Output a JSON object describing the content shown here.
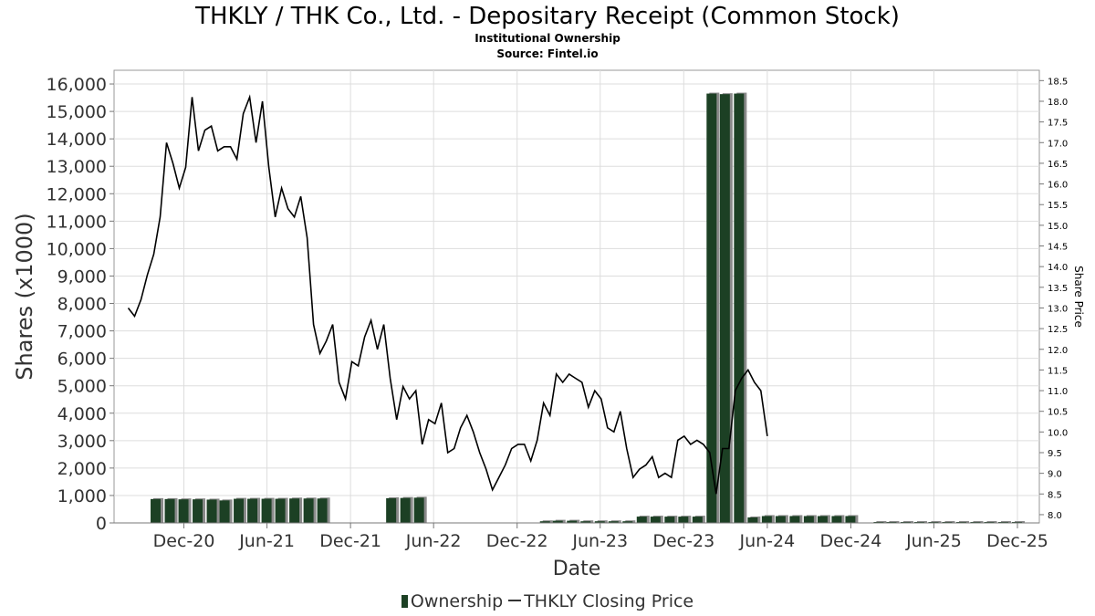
{
  "header": {
    "title": "THKLY / THK Co., Ltd. - Depositary Receipt (Common Stock)",
    "subtitle": "Institutional Ownership",
    "source": "Source: Fintel.io"
  },
  "legend": {
    "ownership_label": "Ownership",
    "price_label": "THKLY Closing Price"
  },
  "colors": {
    "bar": "#1c4024",
    "bar_shadow": "#8a8a8a",
    "line": "#000000",
    "grid": "#dddddd",
    "axis_text": "#333333"
  },
  "chart_data": {
    "type": "bar",
    "title": "THKLY / THK Co., Ltd. - Depositary Receipt (Common Stock)",
    "subtitle": "Institutional Ownership",
    "xlabel": "Date",
    "ylabel": "Shares (x1000)",
    "y2label": "Share Price",
    "ylim": [
      0,
      16500
    ],
    "y2lim": [
      7.8,
      18.75
    ],
    "grid": true,
    "legend_position": "bottom",
    "x_ticks": [
      "Dec-20",
      "Jun-21",
      "Dec-21",
      "Jun-22",
      "Dec-22",
      "Jun-23",
      "Dec-23",
      "Jun-24",
      "Dec-24",
      "Jun-25",
      "Dec-25"
    ],
    "y_ticks": [
      0,
      1000,
      2000,
      3000,
      4000,
      5000,
      6000,
      7000,
      8000,
      9000,
      10000,
      11000,
      12000,
      13000,
      14000,
      15000,
      16000
    ],
    "y2_ticks": [
      8.0,
      8.5,
      9.0,
      9.5,
      10.0,
      10.5,
      11.0,
      11.5,
      12.0,
      12.5,
      13.0,
      13.5,
      14.0,
      14.5,
      15.0,
      15.5,
      16.0,
      16.5,
      17.0,
      17.5,
      18.0,
      18.5
    ],
    "series": [
      {
        "name": "Ownership",
        "kind": "bar",
        "axis": "left",
        "dates": [
          "2020-09-30",
          "2020-10-31",
          "2020-11-30",
          "2020-12-31",
          "2021-01-31",
          "2021-02-28",
          "2021-03-31",
          "2021-04-30",
          "2021-05-31",
          "2021-06-30",
          "2021-07-31",
          "2021-08-31",
          "2021-09-30",
          "2022-02-28",
          "2022-03-31",
          "2022-04-30",
          "2023-01-31",
          "2023-02-28",
          "2023-03-31",
          "2023-04-30",
          "2023-05-31",
          "2023-06-30",
          "2023-07-31",
          "2023-08-31",
          "2023-09-30",
          "2023-10-31",
          "2023-11-30",
          "2023-12-31",
          "2024-01-31",
          "2024-02-29",
          "2024-03-31",
          "2024-04-30",
          "2024-05-31",
          "2024-06-30",
          "2024-07-31",
          "2024-08-31",
          "2024-09-30",
          "2024-10-31",
          "2024-11-30",
          "2025-01-31",
          "2025-02-28",
          "2025-03-31",
          "2025-04-30",
          "2025-05-31",
          "2025-06-30",
          "2025-07-31",
          "2025-08-31",
          "2025-09-30",
          "2025-10-31",
          "2025-11-30"
        ],
        "values": [
          870,
          870,
          860,
          860,
          850,
          820,
          880,
          880,
          880,
          880,
          890,
          890,
          890,
          900,
          910,
          920,
          60,
          80,
          80,
          60,
          60,
          60,
          60,
          230,
          230,
          230,
          230,
          230,
          15650,
          15630,
          15650,
          200,
          250,
          250,
          250,
          250,
          250,
          250,
          250,
          10,
          10,
          10,
          10,
          10,
          10,
          10,
          10,
          10,
          10,
          10
        ]
      },
      {
        "name": "THKLY Closing Price",
        "kind": "line",
        "axis": "right",
        "dates": [
          "2020-08-01",
          "2020-08-15",
          "2020-08-29",
          "2020-09-12",
          "2020-09-26",
          "2020-10-10",
          "2020-10-24",
          "2020-11-07",
          "2020-11-21",
          "2020-12-05",
          "2020-12-19",
          "2021-01-02",
          "2021-01-16",
          "2021-01-30",
          "2021-02-13",
          "2021-02-27",
          "2021-03-13",
          "2021-03-27",
          "2021-04-10",
          "2021-04-24",
          "2021-05-08",
          "2021-05-22",
          "2021-06-05",
          "2021-06-19",
          "2021-07-03",
          "2021-07-17",
          "2021-07-31",
          "2021-08-14",
          "2021-08-28",
          "2021-09-11",
          "2021-09-25",
          "2021-10-09",
          "2021-10-23",
          "2021-11-06",
          "2021-11-20",
          "2021-12-04",
          "2021-12-18",
          "2022-01-01",
          "2022-01-15",
          "2022-01-29",
          "2022-02-12",
          "2022-02-26",
          "2022-03-12",
          "2022-03-26",
          "2022-04-09",
          "2022-04-23",
          "2022-05-07",
          "2022-05-21",
          "2022-06-04",
          "2022-06-18",
          "2022-07-02",
          "2022-07-16",
          "2022-07-30",
          "2022-08-13",
          "2022-08-27",
          "2022-09-10",
          "2022-09-24",
          "2022-10-08",
          "2022-10-22",
          "2022-11-05",
          "2022-11-19",
          "2022-12-03",
          "2022-12-17",
          "2022-12-31",
          "2023-01-14",
          "2023-01-28",
          "2023-02-11",
          "2023-02-25",
          "2023-03-11",
          "2023-03-25",
          "2023-04-08",
          "2023-04-22",
          "2023-05-06",
          "2023-05-20",
          "2023-06-03",
          "2023-06-17",
          "2023-07-01",
          "2023-07-15",
          "2023-07-29",
          "2023-08-12",
          "2023-08-26",
          "2023-09-09",
          "2023-09-23",
          "2023-10-07",
          "2023-10-21",
          "2023-11-04",
          "2023-11-18",
          "2023-12-02",
          "2023-12-16",
          "2023-12-30",
          "2024-01-13",
          "2024-01-27",
          "2024-02-10",
          "2024-02-24",
          "2024-03-09",
          "2024-03-23",
          "2024-04-06",
          "2024-04-20",
          "2024-05-04",
          "2024-05-18",
          "2024-06-01"
        ],
        "values": [
          13.0,
          12.8,
          13.2,
          13.8,
          14.3,
          15.2,
          17.0,
          16.5,
          15.9,
          16.4,
          18.1,
          16.8,
          17.3,
          17.4,
          16.8,
          16.9,
          16.9,
          16.6,
          17.7,
          18.1,
          17.0,
          18.0,
          16.4,
          15.2,
          15.9,
          15.4,
          15.2,
          15.7,
          14.7,
          12.6,
          11.9,
          12.2,
          12.6,
          11.2,
          10.8,
          11.7,
          11.6,
          12.3,
          12.7,
          12.0,
          12.6,
          11.3,
          10.3,
          11.1,
          10.8,
          11.0,
          9.7,
          10.3,
          10.2,
          10.7,
          9.5,
          9.6,
          10.1,
          10.4,
          10.0,
          9.5,
          9.1,
          8.6,
          8.9,
          9.2,
          9.6,
          9.7,
          9.7,
          9.3,
          9.8,
          10.7,
          10.4,
          11.4,
          11.2,
          11.4,
          11.3,
          11.2,
          10.6,
          11.0,
          10.8,
          10.1,
          10.0,
          10.5,
          9.6,
          8.9,
          9.1,
          9.2,
          9.4,
          8.9,
          9.0,
          8.9,
          9.8,
          9.9,
          9.7,
          9.8,
          9.7,
          9.5,
          8.5,
          9.6,
          9.6,
          11.0,
          11.3,
          11.5,
          11.2,
          11.0,
          9.9
        ]
      }
    ]
  }
}
